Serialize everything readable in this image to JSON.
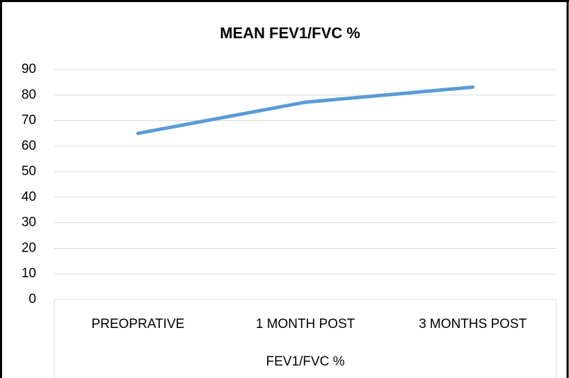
{
  "chart_data": {
    "type": "line",
    "title": "MEAN FEV1/FVC %",
    "categories": [
      "PREOPRATIVE",
      "1 MONTH POST",
      "3 MONTHS POST"
    ],
    "series": [
      {
        "name": "FEV1/FVC %",
        "color": "#5b9bd5",
        "values": [
          65,
          77.2,
          83.1
        ]
      }
    ],
    "xlabel": "FEV1/FVC %",
    "ylim": [
      0,
      90
    ],
    "yticks": [
      0,
      10,
      20,
      30,
      40,
      50,
      60,
      70,
      80,
      90
    ],
    "grid": true
  }
}
